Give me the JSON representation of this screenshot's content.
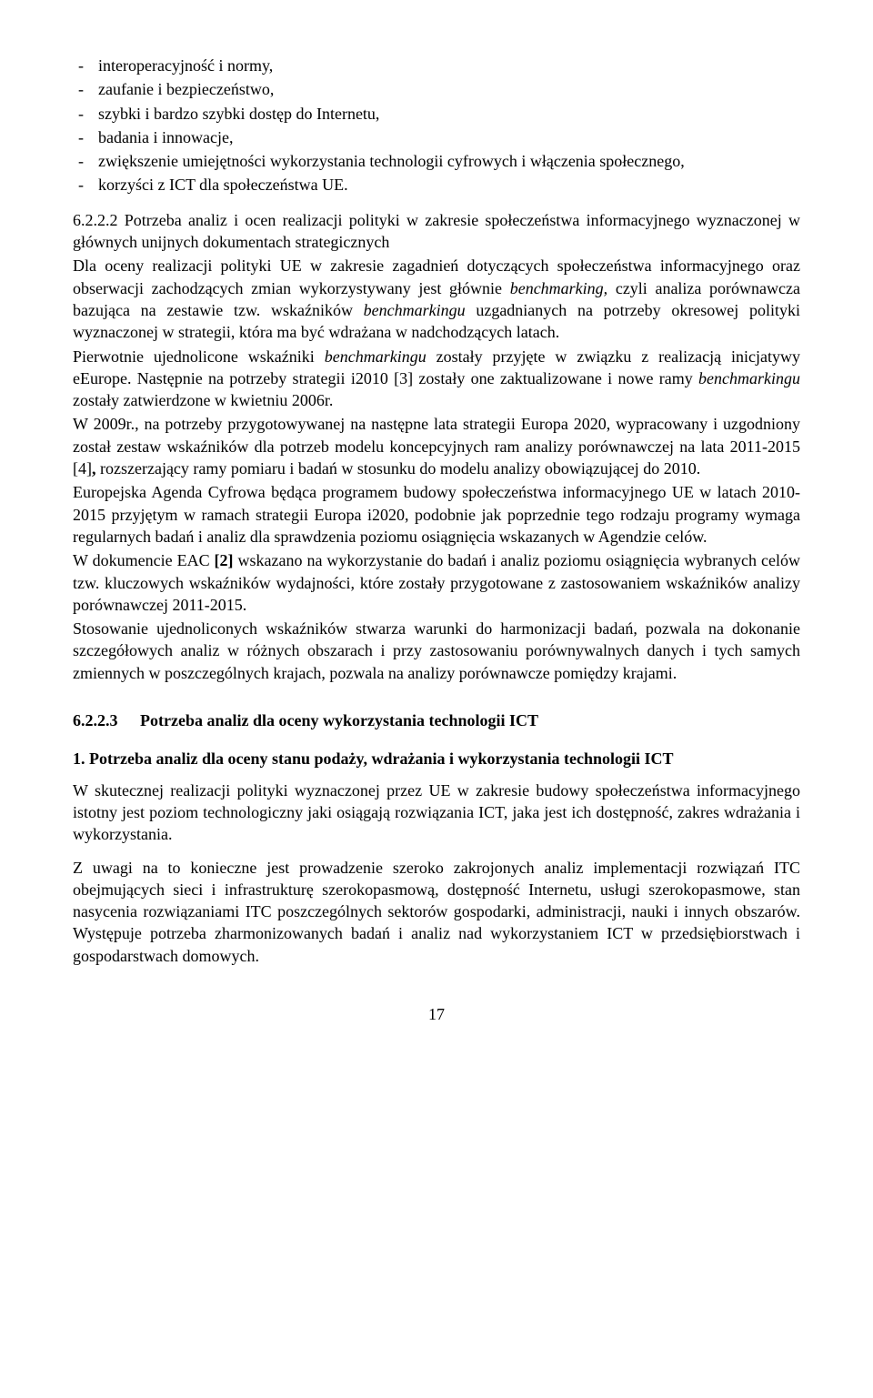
{
  "bullets": [
    "interoperacyjność i normy,",
    "zaufanie i bezpieczeństwo,",
    "szybki i bardzo szybki dostęp do Internetu,",
    "badania i innowacje,",
    "zwiększenie umiejętności wykorzystania technologii cyfrowych i włączenia społecznego,",
    "korzyści z ICT dla społeczeństwa UE."
  ],
  "sec6222": {
    "number": "6.2.2.2",
    "title_part1": "Potrzeba analiz i ocen realizacji polityki w zakresie społeczeństwa informacyjnego wyznaczonej w głównych unijnych dokumentach strategicznych",
    "body_html": "Dla oceny realizacji polityki UE w zakresie zagadnień dotyczących społeczeństwa informacyjnego oraz obserwacji zachodzących zmian wykorzystywany jest głównie <span class=\"italic\">benchmarking,</span> czyli analiza porównawcza bazująca na zestawie tzw. wskaźników <span class=\"italic\">benchmarkingu</span> uzgadnianych na potrzeby okresowej polityki wyznaczonej w strategii, która ma być wdrażana w nadchodzących latach.",
    "p2_html": "Pierwotnie ujednolicone wskaźniki <span class=\"italic\">benchmarkingu</span> zostały przyjęte w związku z realizacją inicjatywy eEurope. Następnie na potrzeby strategii i2010 [3] zostały one zaktualizowane i nowe ramy <span class=\"italic\">benchmarkingu</span> zostały zatwierdzone w kwietniu 2006r.",
    "p3_html": "W 2009r., na potrzeby przygotowywanej na następne lata strategii Europa 2020, wypracowany i uzgodniony został zestaw wskaźników dla potrzeb modelu koncepcyjnych ram analizy porównawczej na lata 2011-2015 [4]<b>,</b> rozszerzający ramy pomiaru i badań w stosunku do modelu analizy obowiązującej do 2010.",
    "p4": "Europejska Agenda Cyfrowa będąca programem budowy społeczeństwa informacyjnego UE w latach 2010-2015 przyjętym w ramach strategii Europa i2020, podobnie jak poprzednie tego rodzaju programy wymaga regularnych badań i analiz dla sprawdzenia poziomu osiągnięcia wskazanych w Agendzie celów.",
    "p5_html": "W dokumencie EAC <b>[2]</b> wskazano na wykorzystanie do badań i analiz poziomu osiągnięcia wybranych celów tzw. kluczowych wskaźników wydajności, które zostały przygotowane z zastosowaniem wskaźników analizy porównawczej 2011-2015.",
    "p6": "Stosowanie ujednoliconych wskaźników stwarza warunki do harmonizacji badań, pozwala na dokonanie szczegółowych analiz w różnych obszarach i przy zastosowaniu porównywalnych danych i tych samych zmiennych w poszczególnych krajach, pozwala na analizy porównawcze pomiędzy krajami."
  },
  "sec6223": {
    "number": "6.2.2.3",
    "title": "Potrzeba analiz dla oceny wykorzystania technologii ICT",
    "item1": {
      "num": "1.",
      "title": "Potrzeba analiz dla oceny stanu podaży, wdrażania i wykorzystania technologii ICT"
    },
    "p1": "W skutecznej realizacji polityki wyznaczonej przez UE w zakresie budowy społeczeństwa informacyjnego istotny jest poziom technologiczny jaki osiągają rozwiązania ICT, jaka jest ich dostępność, zakres wdrażania i wykorzystania.",
    "p2": "Z uwagi na to konieczne jest prowadzenie szeroko zakrojonych analiz implementacji rozwiązań ITC obejmujących sieci i infrastrukturę szerokopasmową, dostępność Internetu, usługi szerokopasmowe, stan nasycenia rozwiązaniami ITC poszczególnych sektorów gospodarki, administracji, nauki i innych obszarów. Występuje potrzeba zharmonizowanych badań i analiz nad wykorzystaniem ICT w przedsiębiorstwach i gospodarstwach domowych."
  },
  "page_number": "17"
}
